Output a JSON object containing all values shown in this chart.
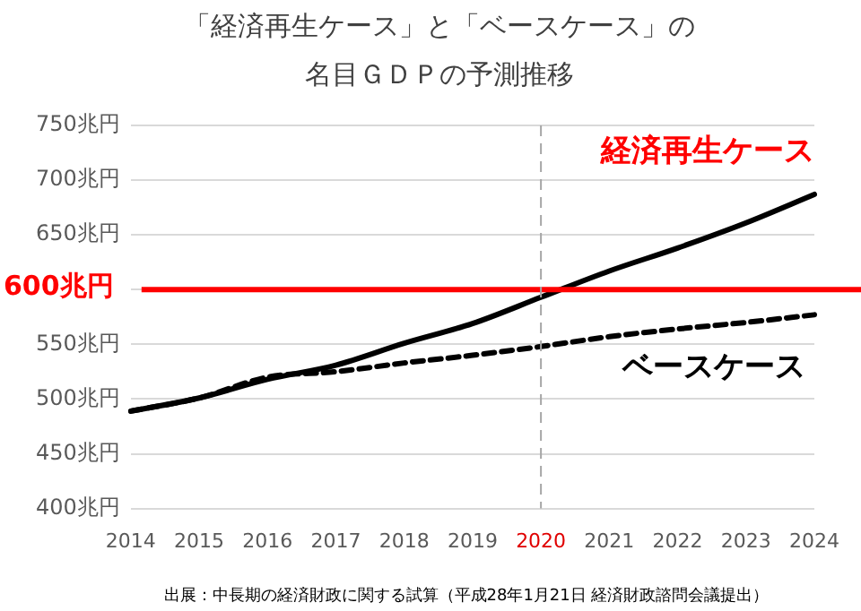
{
  "chart_data": {
    "type": "line",
    "title": "「経済再生ケース」と「ベースケース」の名目ＧＤＰの予測推移",
    "categories": [
      "2014",
      "2015",
      "2016",
      "2017",
      "2018",
      "2019",
      "2020",
      "2021",
      "2022",
      "2023",
      "2024"
    ],
    "series": [
      {
        "color": "#000000",
        "line_style": "solid",
        "values": [
          489,
          501,
          518,
          531,
          551,
          569,
          593,
          617,
          638,
          661,
          687
        ]
      },
      {
        "name": "ベースケース",
        "color": "#000000",
        "line_style": "dashed",
        "values": [
          489,
          501,
          520,
          525,
          533,
          540,
          548,
          557,
          564,
          570,
          577
        ]
      }
    ],
    "ylim": [
      400,
      750
    ],
    "yticks": [
      {
        "value": 400,
        "label": "400兆円"
      },
      {
        "value": 450,
        "label": "450兆円"
      },
      {
        "value": 500,
        "label": "500兆円"
      },
      {
        "value": 550,
        "label": "550兆円"
      },
      {
        "value": 600,
        "label": null
      },
      {
        "value": 650,
        "label": "650兆円"
      },
      {
        "value": 700,
        "label": "700兆円"
      },
      {
        "value": 750,
        "label": "750兆円"
      }
    ],
    "ref_lines": [
      {
        "axis": "y",
        "value": 600,
        "label": "600兆円",
        "color": "#ff0000",
        "line_style": "solid"
      },
      {
        "axis": "x",
        "value": "2020",
        "color": "#a6a6a6",
        "line_style": "dashed"
      }
    ],
    "annotations": [
      "経済再生ケース",
      "出展：中長期の経済財政に関する試算（平成28年1月21日 経済財政諮問会議提出）"
    ],
    "grid": "y",
    "legend": false,
    "marker": "none"
  }
}
